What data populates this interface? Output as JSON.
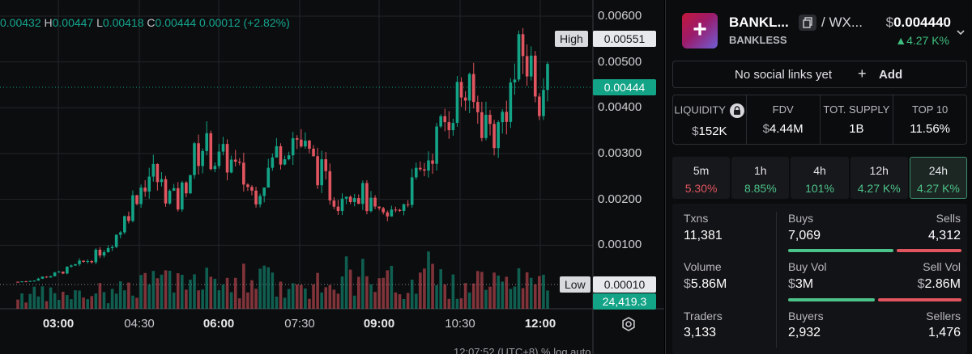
{
  "ohlc": {
    "o_val": "0.00432",
    "h_key": "H",
    "h_val": "0.00447",
    "l_key": "L",
    "l_val": "0.00418",
    "c_key": "C",
    "c_val": "0.00444",
    "change": "0.00012 (+2.82%)"
  },
  "chart_data": {
    "type": "candlestick",
    "y_ticks": [
      "0.00600",
      "0.00500",
      "0.00400",
      "0.00300",
      "0.00200",
      "0.00100"
    ],
    "ylim": [
      0,
      0.0062
    ],
    "x_ticks": [
      {
        "label": "03:00",
        "bold": true
      },
      {
        "label": "04:30",
        "bold": false
      },
      {
        "label": "06:00",
        "bold": true
      },
      {
        "label": "07:30",
        "bold": false
      },
      {
        "label": "09:00",
        "bold": true
      },
      {
        "label": "10:30",
        "bold": false
      },
      {
        "label": "12:00",
        "bold": true
      }
    ],
    "high": {
      "label": "High",
      "value": "0.00551"
    },
    "low": {
      "label": "Low",
      "value": "0.00010"
    },
    "last_price": "0.00444",
    "last_volume": "24,419.3",
    "close_path": [
      0.0002,
      0.00022,
      0.00025,
      0.0003,
      0.00034,
      0.0004,
      0.00048,
      0.00056,
      0.00064,
      0.00075,
      0.0009,
      0.00105,
      0.0013,
      0.0017,
      0.0021,
      0.0024,
      0.0026,
      0.0023,
      0.0021,
      0.0019,
      0.0024,
      0.0029,
      0.0032,
      0.003,
      0.0028,
      0.0029,
      0.0026,
      0.0024,
      0.0021,
      0.0024,
      0.0027,
      0.0031,
      0.0033,
      0.0034,
      0.0031,
      0.0028,
      0.0026,
      0.0022,
      0.002,
      0.0023,
      0.0022,
      0.0021,
      0.0018,
      0.0016,
      0.0016,
      0.0018,
      0.002,
      0.0023,
      0.0026,
      0.003,
      0.0034,
      0.0038,
      0.0042,
      0.0044,
      0.0041,
      0.0038,
      0.0036,
      0.0034,
      0.0041,
      0.0046,
      0.0052,
      0.0048,
      0.0044,
      0.00444
    ]
  },
  "bottom_bar": "12:07:52 (UTC+8)    %    log    auto",
  "token": {
    "logo_glyph": "+",
    "name": "BANKL...",
    "symbol": "BANKLESS",
    "pair_sep": "/ WX...",
    "price_cur": "$",
    "price": "0.004440",
    "change": "▲4.27 K%"
  },
  "social": {
    "text": "No social links yet",
    "plus": "+",
    "add": "Add"
  },
  "stats": [
    {
      "label": "LIQUIDITY",
      "cur": "$",
      "value": "152K"
    },
    {
      "label": "FDV",
      "cur": "$",
      "value": "4.44M"
    },
    {
      "label": "TOT. SUPPLY",
      "cur": "",
      "value": "1B"
    },
    {
      "label": "TOP 10",
      "cur": "",
      "value": "11.56%"
    }
  ],
  "tabs": [
    {
      "label": "5m",
      "value": "5.30%"
    },
    {
      "label": "1h",
      "value": "8.85%"
    },
    {
      "label": "4h",
      "value": "101%"
    },
    {
      "label": "12h",
      "value": "4.27 K%"
    },
    {
      "label": "24h",
      "value": "4.27 K%"
    }
  ],
  "txns": {
    "label": "Txns",
    "value": "11,381",
    "buys_label": "Buys",
    "buys": "7,069",
    "sells_label": "Sells",
    "sells": "4,312",
    "buy_share": 0.62
  },
  "volume": {
    "label": "Volume",
    "cur": "$",
    "value": "5.86M",
    "buy_label": "Buy Vol",
    "buy_cur": "$",
    "buy": "3M",
    "sell_label": "Sell Vol",
    "sell_cur": "$",
    "sell": "2.86M",
    "buy_share": 0.51
  },
  "traders": {
    "label": "Traders",
    "value": "3,133",
    "buyers_label": "Buyers",
    "buyers": "2,932",
    "sellers_label": "Sellers",
    "sellers": "1,476",
    "buy_share": 0.66
  },
  "colors": {
    "up": "#13a386",
    "down": "#e0555f",
    "accent": "#3fbf7f"
  }
}
